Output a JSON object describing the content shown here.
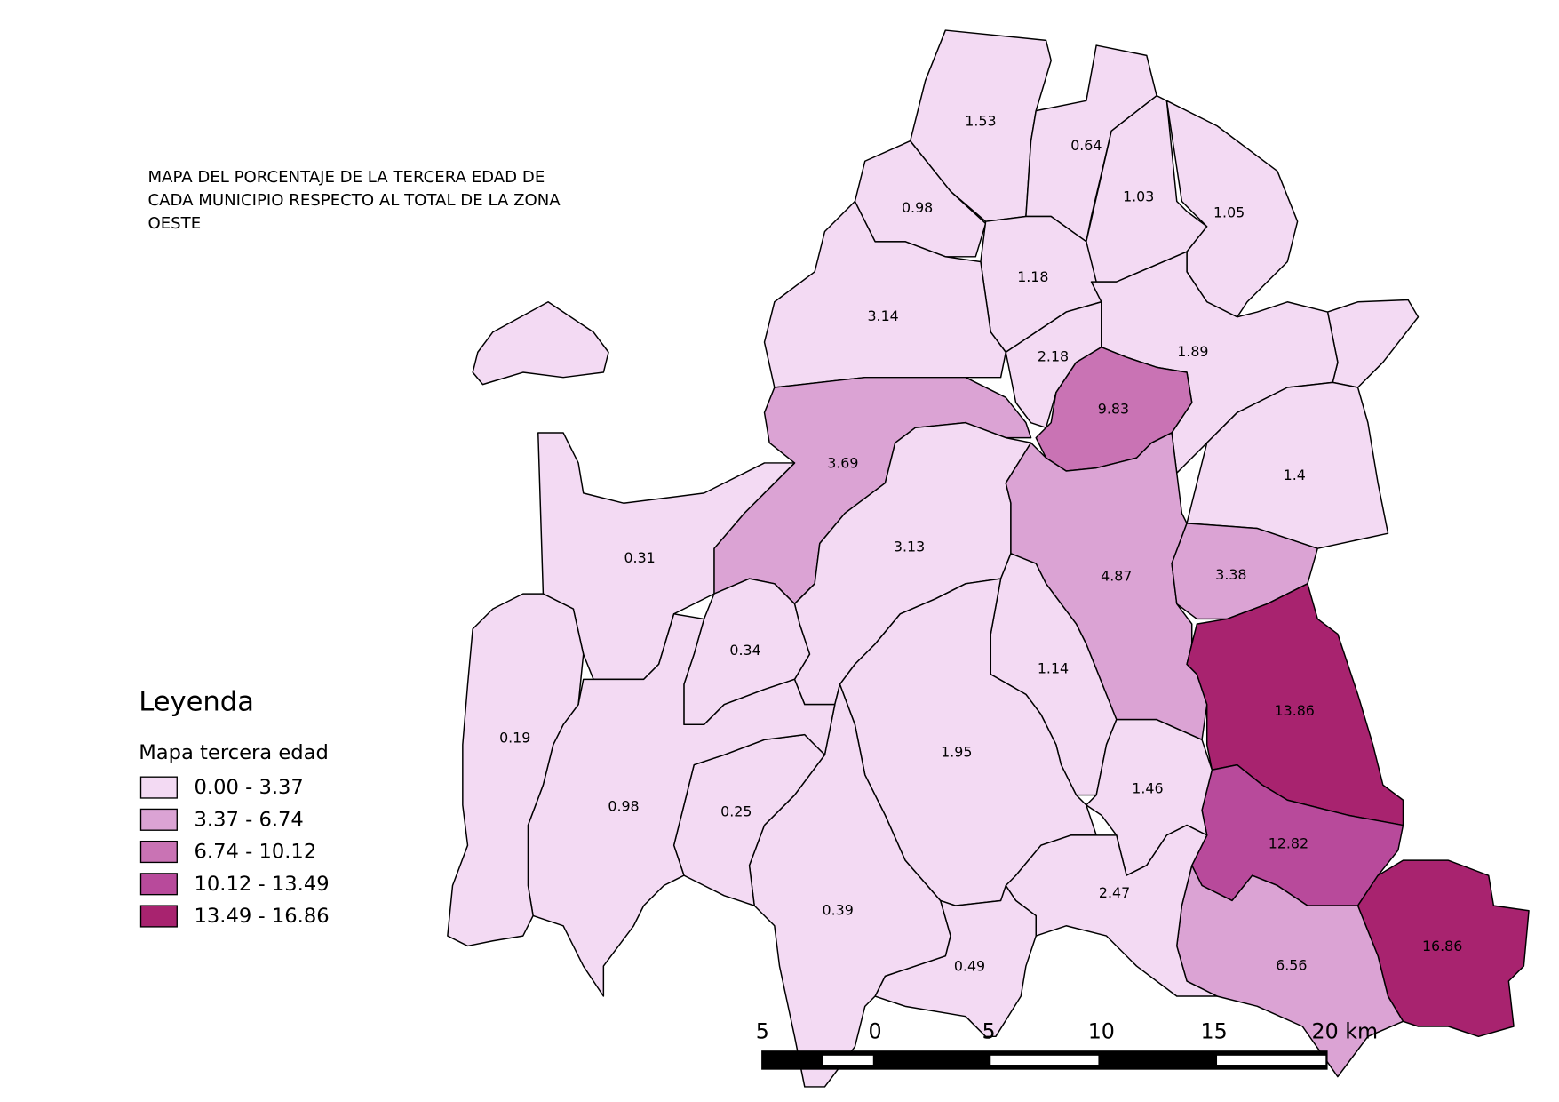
{
  "title": [
    "MAPA DEL PORCENTAJE DE LA TERCERA EDAD DE",
    "CADA MUNICIPIO RESPECTO AL TOTAL DE LA ZONA",
    "OESTE"
  ],
  "legend": {
    "title": "Leyenda",
    "subtitle": "Mapa tercera edad",
    "classes": [
      {
        "label": "0.00 - 3.37",
        "min": 0,
        "max": 3.37,
        "color": "#f3daf3"
      },
      {
        "label": "3.37 - 6.74",
        "min": 3.37,
        "max": 6.74,
        "color": "#dba3d4"
      },
      {
        "label": "6.74 - 10.12",
        "min": 6.74,
        "max": 10.12,
        "color": "#c973b4"
      },
      {
        "label": "10.12 - 13.49",
        "min": 10.12,
        "max": 13.49,
        "color": "#b84a9b"
      },
      {
        "label": "13.49 - 16.86",
        "min": 13.49,
        "max": 16.86,
        "color": "#a8236f"
      }
    ]
  },
  "regions": [
    {
      "value": 1.53
    },
    {
      "value": 0.64
    },
    {
      "value": 0.98
    },
    {
      "value": 1.03
    },
    {
      "value": 1.05
    },
    {
      "value": 1.18
    },
    {
      "value": 3.14
    },
    {
      "value": 2.18
    },
    {
      "value": 1.89
    },
    {
      "value": 9.83
    },
    {
      "value": 1.4
    },
    {
      "value": 3.69
    },
    {
      "value": 0.31
    },
    {
      "value": 3.13
    },
    {
      "value": 4.87
    },
    {
      "value": 3.38
    },
    {
      "value": 13.86
    },
    {
      "value": 12.82
    },
    {
      "value": 16.86
    },
    {
      "value": 6.56
    },
    {
      "value": 0.34
    },
    {
      "value": 1.14
    },
    {
      "value": 1.95
    },
    {
      "value": 1.46
    },
    {
      "value": 2.47
    },
    {
      "value": 0.49
    },
    {
      "value": 0.39
    },
    {
      "value": 0.25
    },
    {
      "value": 0.98
    },
    {
      "value": 0.19
    }
  ],
  "scale_bar": {
    "labels": [
      "5",
      "0",
      "5",
      "10",
      "15",
      "20 km"
    ]
  }
}
